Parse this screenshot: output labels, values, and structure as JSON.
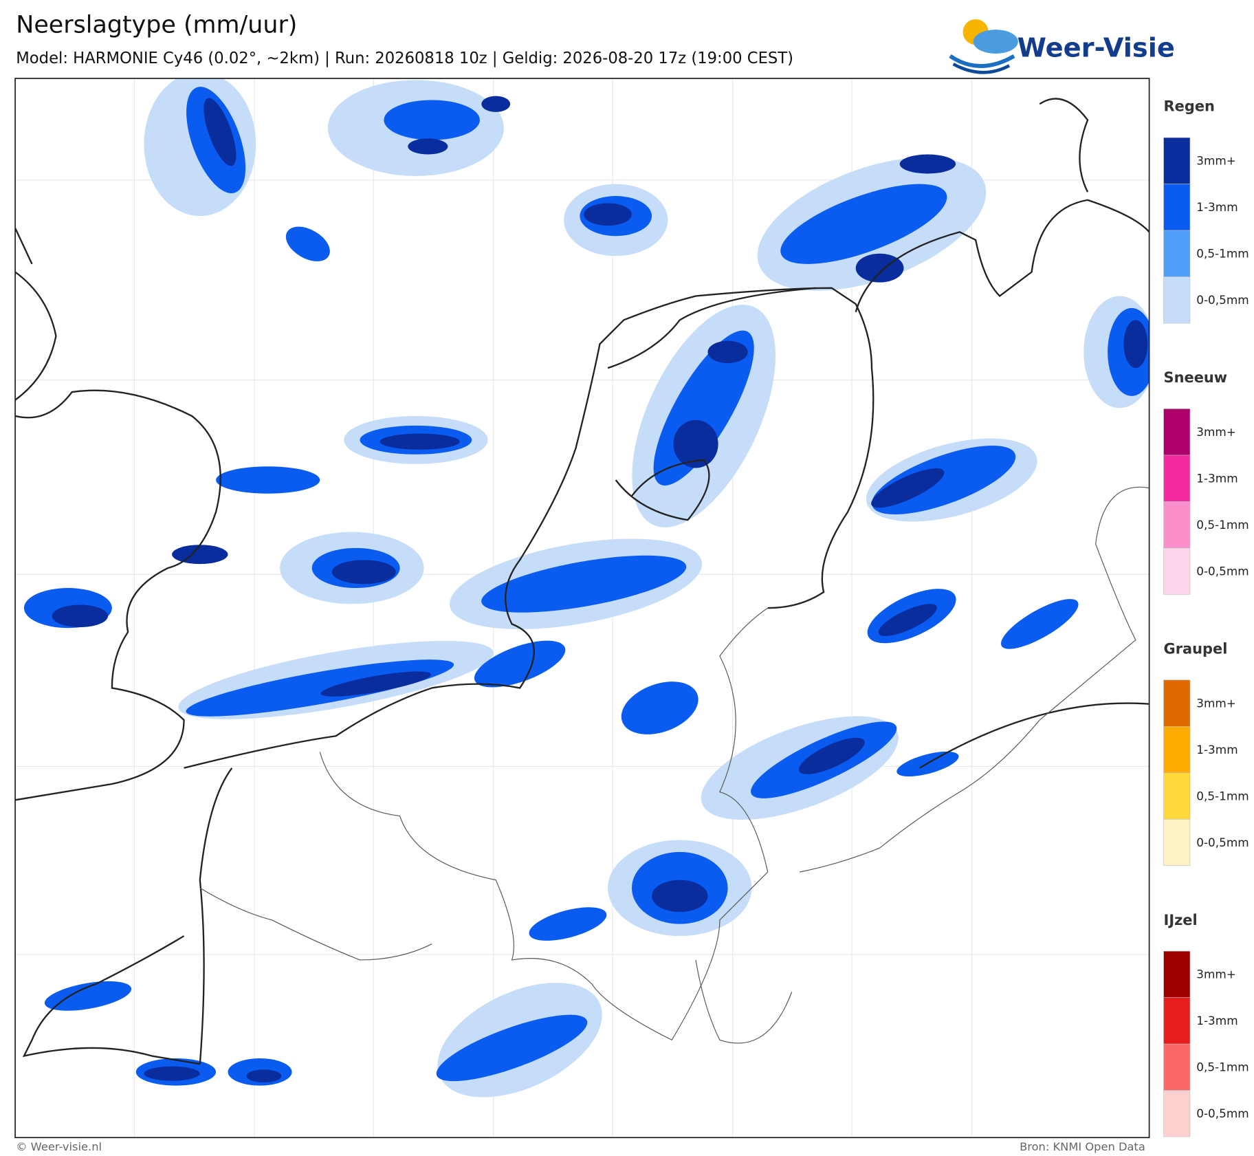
{
  "header": {
    "title": "Neerslagtype (mm/uur)",
    "subtitle": "Model: HARMONIE Cy46 (0.02°, ~2km)  |  Run: 20260818 10z  |  Geldig: 2026-08-20 17z (19:00 CEST)"
  },
  "logo": {
    "text": "Weer-Visie"
  },
  "legend": [
    {
      "title": "Regen",
      "items": [
        {
          "label": "3mm+",
          "color": "#0a2d9e"
        },
        {
          "label": "1-3mm",
          "color": "#0a5cf0"
        },
        {
          "label": "0,5-1mm",
          "color": "#4f9ef7"
        },
        {
          "label": "0-0,5mm",
          "color": "#c6ddfa"
        }
      ]
    },
    {
      "title": "Sneeuw",
      "items": [
        {
          "label": "3mm+",
          "color": "#ad006c"
        },
        {
          "label": "1-3mm",
          "color": "#f52a9e"
        },
        {
          "label": "0,5-1mm",
          "color": "#fa8fcb"
        },
        {
          "label": "0-0,5mm",
          "color": "#fdd5ea"
        }
      ]
    },
    {
      "title": "Graupel",
      "items": [
        {
          "label": "3mm+",
          "color": "#df6a00"
        },
        {
          "label": "1-3mm",
          "color": "#ffab00"
        },
        {
          "label": "0,5-1mm",
          "color": "#ffd83a"
        },
        {
          "label": "0-0,5mm",
          "color": "#fff1c6"
        }
      ]
    },
    {
      "title": "IJzel",
      "items": [
        {
          "label": "3mm+",
          "color": "#9e0000"
        },
        {
          "label": "1-3mm",
          "color": "#e81c1c"
        },
        {
          "label": "0,5-1mm",
          "color": "#fa6868"
        },
        {
          "label": "0-0,5mm",
          "color": "#fdd0d0"
        }
      ]
    }
  ],
  "footer": {
    "left": "© Weer-visie.nl",
    "right": "Bron: KNMI Open Data"
  }
}
